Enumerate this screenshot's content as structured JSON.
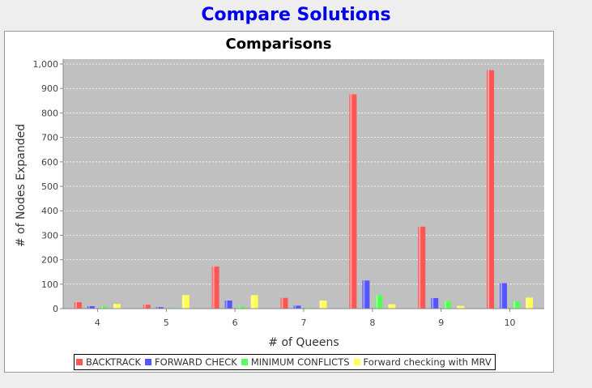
{
  "header": {
    "title": "Compare Solutions"
  },
  "chart_data": {
    "type": "bar",
    "title": "Comparisons",
    "xlabel": "# of Queens",
    "ylabel": "# of Nodes Expanded",
    "categories": [
      "4",
      "5",
      "6",
      "7",
      "8",
      "9",
      "10"
    ],
    "ylim": [
      0,
      1020
    ],
    "yticks": [
      0,
      100,
      200,
      300,
      400,
      500,
      600,
      700,
      800,
      900,
      1000
    ],
    "ytick_labels": [
      "0",
      "100",
      "200",
      "300",
      "400",
      "500",
      "600",
      "700",
      "800",
      "900",
      "1,000"
    ],
    "grid": true,
    "legend_position": "bottom",
    "series": [
      {
        "name": "BACKTRACK",
        "color": "#ff5555",
        "values": [
          26,
          16,
          172,
          44,
          876,
          335,
          975
        ]
      },
      {
        "name": "FORWARD CHECK",
        "color": "#5555ff",
        "values": [
          10,
          6,
          33,
          12,
          115,
          43,
          104
        ]
      },
      {
        "name": "MINIMUM CONFLICTS",
        "color": "#55ff55",
        "values": [
          9,
          3,
          9,
          4,
          55,
          30,
          30
        ]
      },
      {
        "name": "Forward checking with MRV",
        "color": "#ffff55",
        "values": [
          19,
          55,
          55,
          33,
          18,
          11,
          45
        ]
      }
    ]
  }
}
